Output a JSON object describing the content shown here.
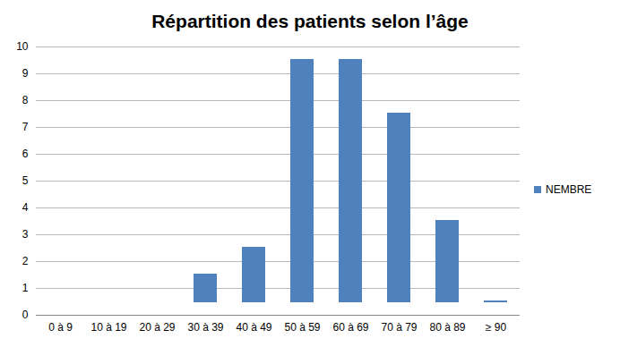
{
  "chart_data": {
    "type": "bar",
    "title": "Répartition des patients selon l’âge",
    "categories": [
      "0 à 9",
      "10 à 19",
      "20 à 29",
      "30 à 39",
      "40 à 49",
      "50 à 59",
      "60 à 69",
      "70 à 79",
      "80 à 89",
      "≥ 90"
    ],
    "series": [
      {
        "name": "NEMBRE",
        "color": "#4f81bd",
        "values": [
          0,
          0,
          0,
          2,
          3,
          10,
          10,
          8,
          4,
          1
        ]
      }
    ],
    "ylim": [
      0,
      10
    ],
    "yticks": [
      0,
      1,
      2,
      3,
      4,
      5,
      6,
      7,
      8,
      9,
      10
    ],
    "grid": true,
    "legend": "right"
  }
}
